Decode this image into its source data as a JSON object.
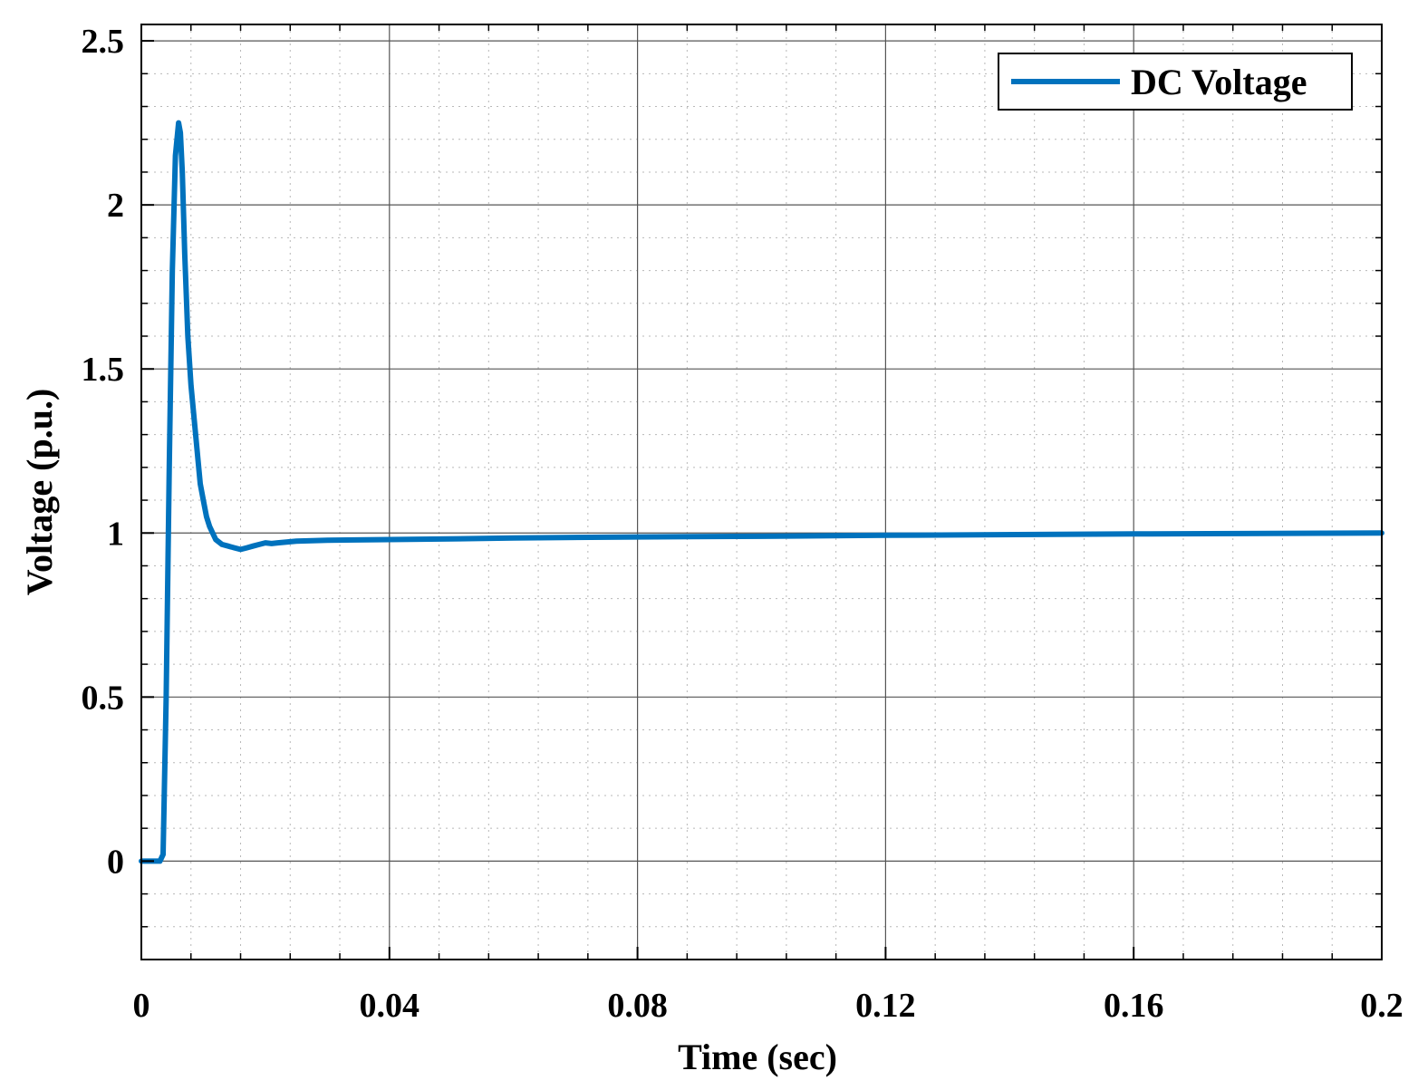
{
  "chart_data": {
    "type": "line",
    "title": "",
    "xlabel": "Time (sec)",
    "ylabel": "Voltage (p.u.)",
    "xlim": [
      0,
      0.2
    ],
    "ylim": [
      -0.3,
      2.55
    ],
    "xticks": [
      0,
      0.04,
      0.08,
      0.12,
      0.16,
      0.2
    ],
    "xtick_labels": [
      "0",
      "0.04",
      "0.08",
      "0.12",
      "0.16",
      "0.2"
    ],
    "yticks": [
      0,
      0.5,
      1,
      1.5,
      2,
      2.5
    ],
    "ytick_labels": [
      "0",
      "0.5",
      "1",
      "1.5",
      "2",
      "2.5"
    ],
    "grid": true,
    "minor_grid": true,
    "legend": {
      "position": "top-right"
    },
    "series": [
      {
        "name": "DC Voltage",
        "color": "#0072BD",
        "x": [
          0,
          0.003,
          0.0035,
          0.004,
          0.0045,
          0.005,
          0.0055,
          0.006,
          0.0063,
          0.0066,
          0.007,
          0.0075,
          0.008,
          0.0085,
          0.009,
          0.0095,
          0.01,
          0.0105,
          0.011,
          0.012,
          0.013,
          0.014,
          0.015,
          0.016,
          0.017,
          0.018,
          0.019,
          0.02,
          0.021,
          0.022,
          0.025,
          0.03,
          0.04,
          0.05,
          0.06,
          0.08,
          0.1,
          0.12,
          0.16,
          0.2
        ],
        "y": [
          0,
          0,
          0.02,
          0.5,
          1.2,
          1.8,
          2.15,
          2.25,
          2.22,
          2.1,
          1.85,
          1.6,
          1.45,
          1.35,
          1.25,
          1.15,
          1.1,
          1.05,
          1.02,
          0.98,
          0.965,
          0.96,
          0.955,
          0.95,
          0.955,
          0.96,
          0.965,
          0.97,
          0.968,
          0.97,
          0.975,
          0.978,
          0.98,
          0.982,
          0.985,
          0.988,
          0.99,
          0.993,
          0.997,
          1.0
        ]
      }
    ]
  }
}
